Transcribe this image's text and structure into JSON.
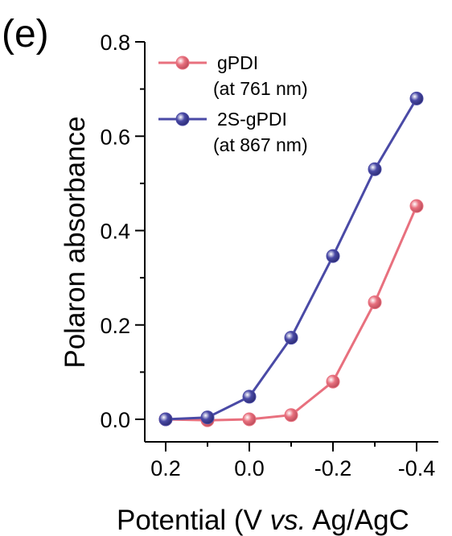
{
  "panel_label": "(e)",
  "chart_data": {
    "type": "line",
    "title": "",
    "xlabel": "Potential (V vs. Ag/AgC",
    "xlabel_parts": [
      "Potential (V ",
      "vs.",
      " Ag/AgC"
    ],
    "ylabel": "Polaron absorbance",
    "xlim": [
      0.2,
      -0.4
    ],
    "ylim": [
      0.0,
      0.8
    ],
    "x_reversed": true,
    "x_ticks": [
      0.2,
      0.0,
      -0.2,
      -0.4
    ],
    "x_tick_labels": [
      "0.2",
      "0.0",
      "-0.2",
      "-0.4"
    ],
    "y_ticks": [
      0.0,
      0.2,
      0.4,
      0.6,
      0.8
    ],
    "y_tick_labels": [
      "0.0",
      "0.2",
      "0.4",
      "0.6",
      "0.8"
    ],
    "grid": false,
    "legend_position": "top-left",
    "x": [
      0.2,
      0.1,
      0.0,
      -0.1,
      -0.2,
      -0.3,
      -0.4
    ],
    "series": [
      {
        "name": "gPDI",
        "name_sub": "(at 761 nm)",
        "color": "#e8707e",
        "values": [
          0.0,
          -0.002,
          0.0,
          0.009,
          0.08,
          0.248,
          0.452
        ]
      },
      {
        "name": "2S-gPDI",
        "name_sub": "(at 867 nm)",
        "color": "#4a4aa6",
        "values": [
          0.0,
          0.004,
          0.048,
          0.173,
          0.346,
          0.53,
          0.68
        ]
      }
    ]
  }
}
